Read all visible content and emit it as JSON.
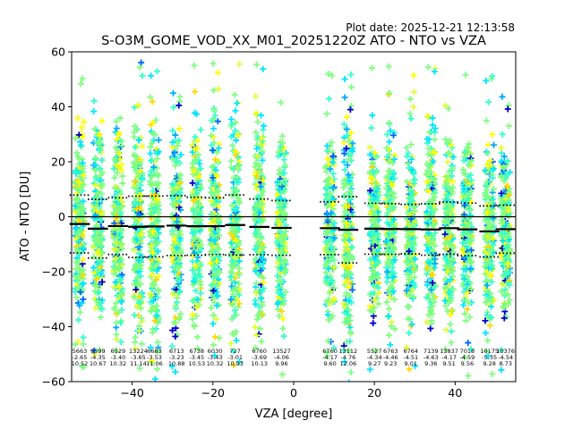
{
  "chart_data": {
    "type": "scatter",
    "plot_date": "Plot date: 2025-12-21 12:13:58",
    "title": "S-O3M_GOME_VOD_XX_M01_20251220Z ATO - NTO vs VZA",
    "xlabel": "VZA [degree]",
    "ylabel": "ATO - NTO [DU]",
    "xlim": [
      -55,
      55
    ],
    "ylim": [
      -60,
      60
    ],
    "xticks": [
      -40,
      -20,
      0,
      20,
      40
    ],
    "yticks": [
      -60,
      -40,
      -20,
      0,
      20,
      40,
      60
    ],
    "tick_labels_x": [
      "−40",
      "−20",
      "0",
      "20",
      "40"
    ],
    "tick_labels_y": [
      "−60",
      "−40",
      "−20",
      "0",
      "20",
      "40",
      "60"
    ],
    "marker": "+",
    "marker_colors": [
      "#7fff7f",
      "#33ffcc",
      "#00e5ff",
      "#ffff00",
      "#e0ff30",
      "#ffd700",
      "#00aaff",
      "#0066ff",
      "#0000cc",
      "#000080"
    ],
    "reference_line": 0,
    "bins": [
      {
        "vza": -53,
        "count": "5663",
        "mean": "-2.65",
        "std": "10.52"
      },
      {
        "vza": -48.5,
        "count": "9599",
        "mean": "-4.35",
        "std": "10.67"
      },
      {
        "vza": -43.5,
        "count": "6529",
        "mean": "-3.40",
        "std": "10.32"
      },
      {
        "vza": -38.5,
        "count": "13224",
        "mean": "-3.65",
        "std": "11.14"
      },
      {
        "vza": -34.5,
        "count": "6683",
        "mean": "-3.53",
        "std": "11.06"
      },
      {
        "vza": -29,
        "count": "6713",
        "mean": "-3.23",
        "std": "10.88"
      },
      {
        "vza": -24,
        "count": "6738",
        "mean": "-3.45",
        "std": "10.53"
      },
      {
        "vza": -19.5,
        "count": "6030",
        "mean": "-3.43",
        "std": "10.32"
      },
      {
        "vza": -14.5,
        "count": "727",
        "mean": "-3.01",
        "std": "10.93"
      },
      {
        "vza": -8.5,
        "count": "6760",
        "mean": "-3.69",
        "std": "10.13"
      },
      {
        "vza": -3,
        "count": "13527",
        "mean": "-4.06",
        "std": "9.96"
      },
      {
        "vza": 9,
        "count": "6760",
        "mean": "-4.17",
        "std": "9.60"
      },
      {
        "vza": 13.5,
        "count": "13112",
        "mean": "-4.76",
        "std": "12.06"
      },
      {
        "vza": 20,
        "count": "5527",
        "mean": "-4.34",
        "std": "9.27"
      },
      {
        "vza": 24,
        "count": "6763",
        "mean": "-4.46",
        "std": "9.23"
      },
      {
        "vza": 29,
        "count": "6764",
        "mean": "-4.51",
        "std": "9.01"
      },
      {
        "vza": 34,
        "count": "7139",
        "mean": "-4.63",
        "std": "9.36"
      },
      {
        "vza": 38.5,
        "count": "13837",
        "mean": "-4.17",
        "std": "9.51"
      },
      {
        "vza": 43,
        "count": "7018",
        "mean": "-4.59",
        "std": "9.56"
      },
      {
        "vza": 48.5,
        "count": "10175",
        "mean": "-5.35",
        "std": "9.28"
      },
      {
        "vza": 52.5,
        "count": "10376",
        "mean": "-4.54",
        "std": "8.73"
      }
    ]
  }
}
